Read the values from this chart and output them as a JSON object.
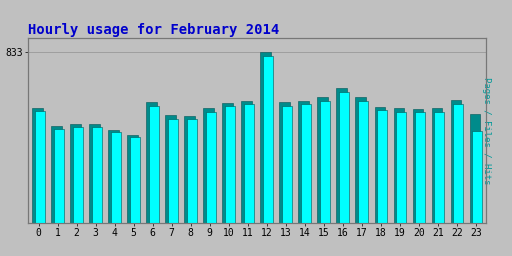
{
  "title": "Hourly usage for February 2014",
  "title_color": "#0000cc",
  "title_fontsize": 10,
  "ylabel_right": "Pages / Files / Hits",
  "ylabel_right_color": "#009999",
  "plot_bg_color": "#c0c0c0",
  "outer_bg_color": "#c0c0c0",
  "hours": [
    0,
    1,
    2,
    3,
    4,
    5,
    6,
    7,
    8,
    9,
    10,
    11,
    12,
    13,
    14,
    15,
    16,
    17,
    18,
    19,
    20,
    21,
    22,
    23
  ],
  "pages": [
    560,
    470,
    480,
    480,
    455,
    430,
    590,
    525,
    520,
    560,
    585,
    595,
    833,
    590,
    595,
    615,
    660,
    615,
    565,
    560,
    555,
    560,
    600,
    530
  ],
  "files": [
    545,
    458,
    468,
    468,
    445,
    420,
    572,
    507,
    505,
    542,
    568,
    578,
    815,
    572,
    578,
    595,
    638,
    595,
    548,
    542,
    540,
    542,
    582,
    450
  ],
  "pages_color": "#008B8B",
  "files_color": "#00FFFF",
  "bar_edge_color": "#005555",
  "ylim_min": 0,
  "ylim_max": 900,
  "ytick_value": 833,
  "grid_color": "#999999",
  "tick_fontsize": 7,
  "font_family": "monospace"
}
